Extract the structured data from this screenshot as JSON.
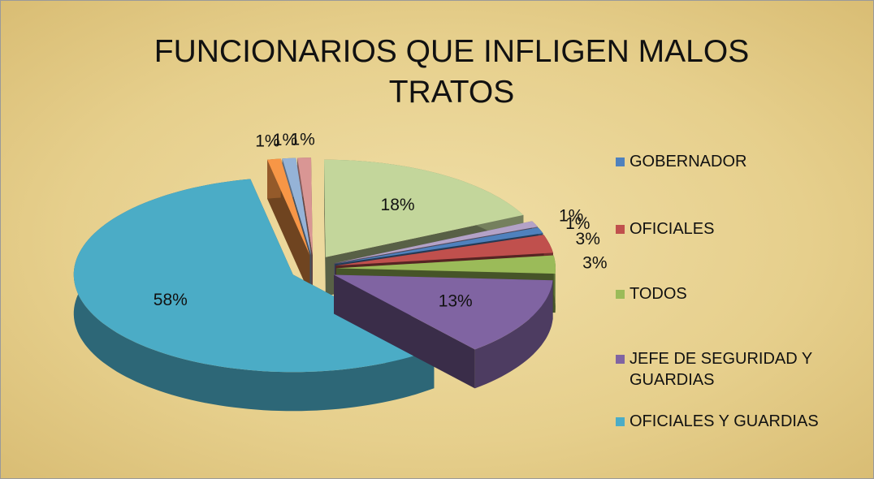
{
  "chart_data": {
    "type": "pie3d",
    "title": "FUNCIONARIOS QUE INFLIGEN MALOS TRATOS",
    "categories": [
      "GOBERNADOR",
      "OFICIALES",
      "TODOS",
      "JEFE DE SEGURIDAD Y GUARDIAS",
      "OFICIALES Y GUARDIAS",
      null,
      null,
      null,
      null,
      null
    ],
    "values": [
      1,
      3,
      3,
      13,
      58,
      1,
      1,
      1,
      18,
      1
    ],
    "value_labels": [
      "1%",
      "3%",
      "3%",
      "13%",
      "58%",
      "1%",
      "1%",
      "1%",
      "18%",
      "1%"
    ],
    "colors": [
      "#4f81bd",
      "#c0504d",
      "#9bbb59",
      "#8064a2",
      "#4bacc6",
      "#f79646",
      "#95b3d7",
      "#d99694",
      "#c3d69b",
      "#b3a2c7"
    ],
    "legend": "right"
  }
}
